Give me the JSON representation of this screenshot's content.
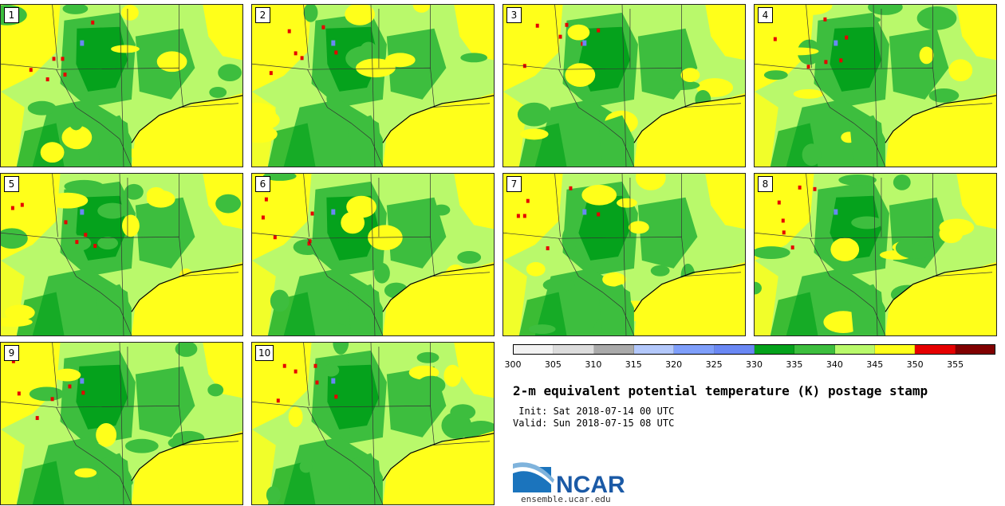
{
  "figure": {
    "title": "2-m equivalent potential temperature (K) postage stamp",
    "init": " Init: Sat 2018-07-14 00 UTC",
    "valid": "Valid: Sun 2018-07-15 08 UTC"
  },
  "members": [
    "1",
    "2",
    "3",
    "4",
    "5",
    "6",
    "7",
    "8",
    "9",
    "10"
  ],
  "colorbar": {
    "colors": [
      "#f2f2f2",
      "#dcdcdc",
      "#aaaaaa",
      "#b3c8fb",
      "#7f9ffb",
      "#6a88f4",
      "#05a21c",
      "#3dbe3e",
      "#b9f96b",
      "#ffff1a",
      "#e60000",
      "#800000"
    ],
    "ticks": [
      "300",
      "305",
      "310",
      "315",
      "320",
      "325",
      "330",
      "335",
      "340",
      "345",
      "350",
      "355"
    ]
  },
  "logo": {
    "text": "NCAR",
    "site": "ensemble.ucar.edu",
    "icon": "ncar-swoosh-icon"
  }
}
